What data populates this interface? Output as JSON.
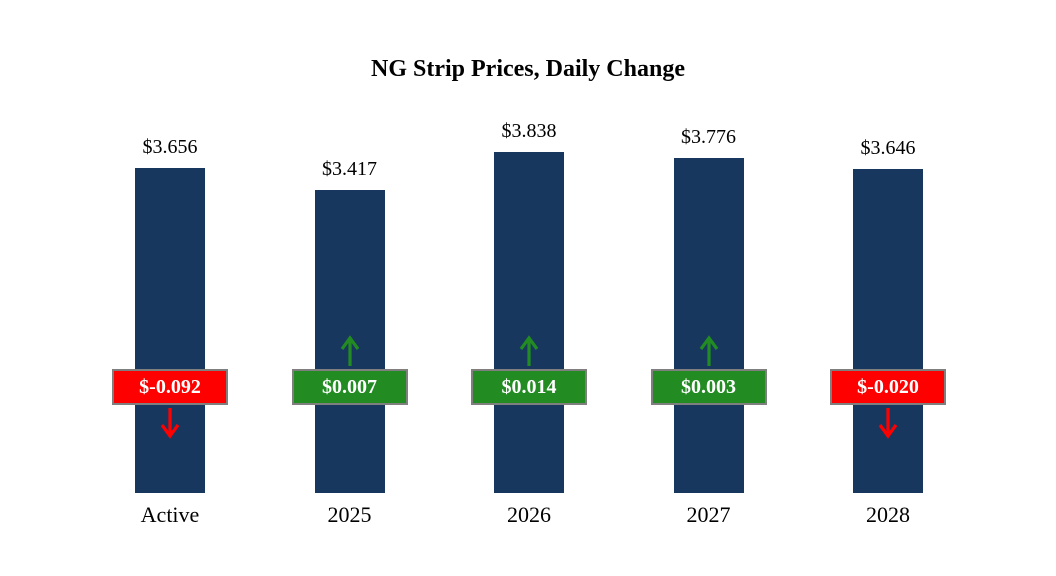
{
  "title": "NG Strip Prices, Daily Change",
  "chart_data": {
    "type": "bar",
    "title": "NG Strip Prices, Daily Change",
    "categories": [
      "Active",
      "2025",
      "2026",
      "2027",
      "2028"
    ],
    "values": [
      3.656,
      3.417,
      3.838,
      3.776,
      3.646
    ],
    "value_labels": [
      "$3.656",
      "$3.417",
      "$3.838",
      "$3.776",
      "$3.646"
    ],
    "changes": [
      -0.092,
      0.007,
      0.014,
      0.003,
      -0.02
    ],
    "change_labels": [
      "$-0.092",
      "$0.007",
      "$0.014",
      "$0.003",
      "$-0.020"
    ],
    "xlabel": "",
    "ylabel": "",
    "ylim": [
      0,
      4
    ],
    "grid": false,
    "legend": "none",
    "colors": {
      "bar": "#17375E",
      "positive": "#228B22",
      "negative": "#FF0000",
      "badge_border": "#7F7F7F",
      "text": "#000000",
      "badge_text": "#FFFFFF"
    }
  }
}
